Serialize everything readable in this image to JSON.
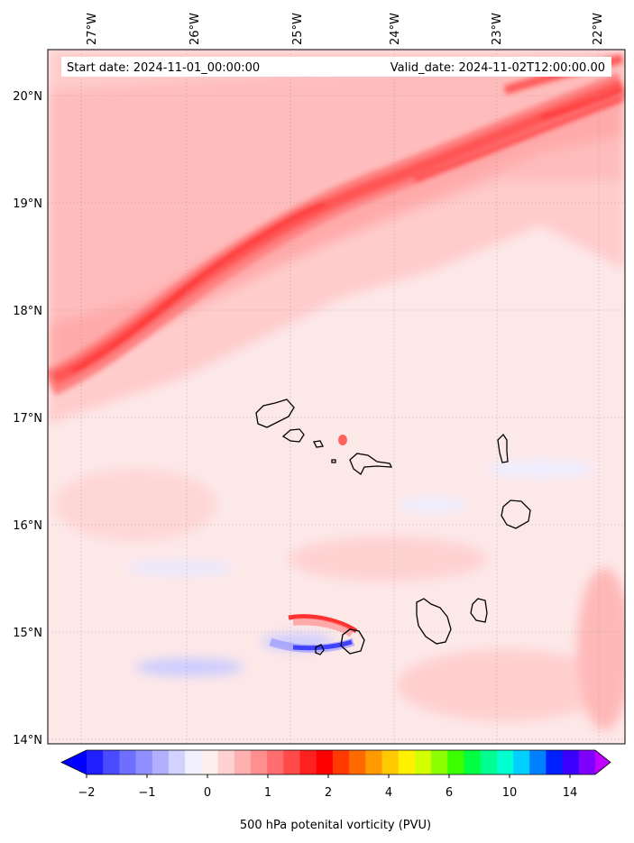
{
  "header": {
    "start_label": "Start date: 2024-11-01_00:00:00",
    "valid_label": "Valid_date: 2024-11-02T12:00:00.00"
  },
  "map": {
    "lon_labels": [
      "27°W",
      "26°W",
      "25°W",
      "24°W",
      "23°W",
      "22°W"
    ],
    "lat_labels": [
      "20°N",
      "19°N",
      "18°N",
      "17°N",
      "16°N",
      "15°N",
      "14°N"
    ],
    "background_color": "#fde8e8",
    "band_color": "#ff3030"
  },
  "colorbar": {
    "ticks": [
      "−2",
      "−1",
      "0",
      "1",
      "2",
      "4",
      "6",
      "10",
      "14"
    ],
    "label": "500 hPa potenital vorticity (PVU)",
    "colors": [
      "#0000ff",
      "#2020ff",
      "#4a4aff",
      "#6e6eff",
      "#8f8fff",
      "#b0b0ff",
      "#d2d2ff",
      "#f0f0ff",
      "#fff0f0",
      "#ffd2d2",
      "#ffb0b0",
      "#ff8f8f",
      "#ff6e6e",
      "#ff4a4a",
      "#ff2020",
      "#ff0000",
      "#ff3a00",
      "#ff6a00",
      "#ff9a00",
      "#ffc800",
      "#fff000",
      "#d4ff00",
      "#8cff00",
      "#3cff00",
      "#00ff40",
      "#00ff90",
      "#00ffd0",
      "#00d0ff",
      "#0080ff",
      "#0020ff",
      "#3a00ff",
      "#8000ff",
      "#c000ff"
    ]
  }
}
